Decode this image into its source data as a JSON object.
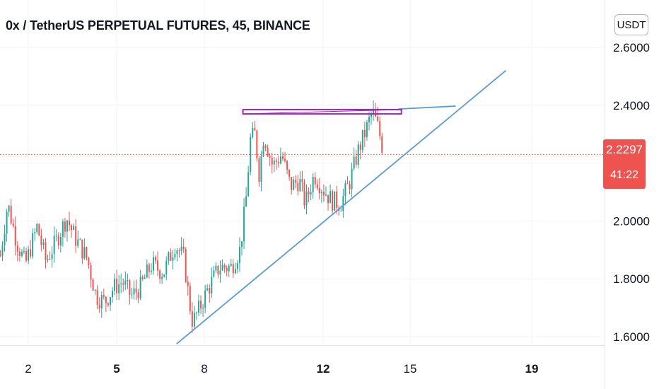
{
  "header": {
    "title": "0x / TetherUS PERPETUAL FUTURES, 45, BINANCE",
    "currency_button": "USDT"
  },
  "price_badge": {
    "price": "2.2297",
    "countdown": "41:22",
    "color": "#ef5350"
  },
  "colors": {
    "up": "#26a69a",
    "down": "#ef5350",
    "trendline": "#5b9bd5",
    "resistance_box": "#9c27b0",
    "grid": "#f0f3fa",
    "price_line": "#ef5350"
  },
  "chart_data": {
    "type": "candlestick",
    "x_ticks": [
      {
        "label": "2",
        "day": 2,
        "bold": false
      },
      {
        "label": "5",
        "day": 5,
        "bold": true
      },
      {
        "label": "8",
        "day": 8,
        "bold": false
      },
      {
        "label": "12",
        "day": 12,
        "bold": true
      },
      {
        "label": "15",
        "day": 15,
        "bold": false
      },
      {
        "label": "19",
        "day": 19,
        "bold": true
      }
    ],
    "y_ticks": [
      "2.6000",
      "2.4000",
      "2.0000",
      "1.8000",
      "1.6000"
    ],
    "ylim": [
      1.58,
      2.65
    ],
    "xlim": [
      1.05,
      21.5
    ],
    "current_price": 2.2297,
    "price_path": [
      [
        1.05,
        1.88
      ],
      [
        1.3,
        2.06
      ],
      [
        1.6,
        1.93
      ],
      [
        1.9,
        1.85
      ],
      [
        2.3,
        1.98
      ],
      [
        2.6,
        1.86
      ],
      [
        2.9,
        1.92
      ],
      [
        3.3,
        2.01
      ],
      [
        3.6,
        1.94
      ],
      [
        4.0,
        1.87
      ],
      [
        4.3,
        1.74
      ],
      [
        4.6,
        1.72
      ],
      [
        4.9,
        1.77
      ],
      [
        5.2,
        1.79
      ],
      [
        5.5,
        1.74
      ],
      [
        5.8,
        1.77
      ],
      [
        6.2,
        1.85
      ],
      [
        6.6,
        1.82
      ],
      [
        7.0,
        1.92
      ],
      [
        7.3,
        1.87
      ],
      [
        7.5,
        1.71
      ],
      [
        7.6,
        1.65
      ],
      [
        7.8,
        1.69
      ],
      [
        8.1,
        1.76
      ],
      [
        8.5,
        1.84
      ],
      [
        8.9,
        1.84
      ],
      [
        9.2,
        1.9
      ],
      [
        9.4,
        2.07
      ],
      [
        9.55,
        2.28
      ],
      [
        9.7,
        2.3
      ],
      [
        9.85,
        2.16
      ],
      [
        10.0,
        2.3
      ],
      [
        10.3,
        2.19
      ],
      [
        10.6,
        2.23
      ],
      [
        10.9,
        2.12
      ],
      [
        11.2,
        2.14
      ],
      [
        11.4,
        2.06
      ],
      [
        11.7,
        2.16
      ],
      [
        12.0,
        2.11
      ],
      [
        12.3,
        2.07
      ],
      [
        12.6,
        2.06
      ],
      [
        12.9,
        2.13
      ],
      [
        13.2,
        2.24
      ],
      [
        13.5,
        2.32
      ],
      [
        13.7,
        2.38
      ],
      [
        13.9,
        2.32
      ],
      [
        14.1,
        2.23
      ]
    ],
    "trendlines": [
      {
        "name": "",
        "x1": 7.05,
        "y1": 1.575,
        "x2": 18.15,
        "y2": 2.52
      },
      {
        "name": "",
        "x1": 14.6,
        "y1": 2.387,
        "x2": 16.5,
        "y2": 2.397
      }
    ],
    "resistance_zone": {
      "x_start": 9.3,
      "x_end": 14.7,
      "y_low": 2.37,
      "y_high": 2.385
    }
  }
}
